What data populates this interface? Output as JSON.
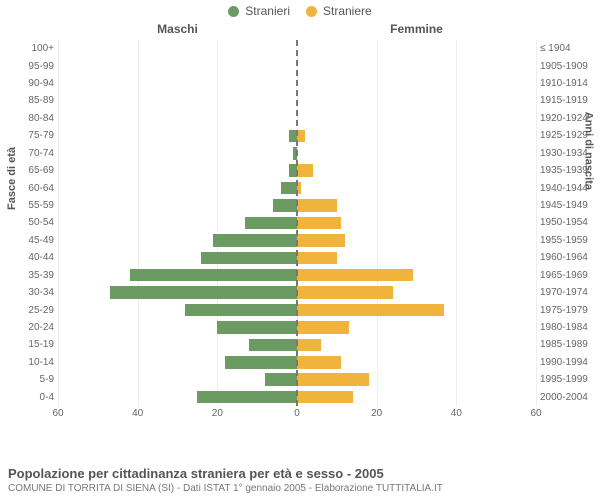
{
  "legend": {
    "male": {
      "label": "Stranieri",
      "color": "#6b9a62"
    },
    "female": {
      "label": "Straniere",
      "color": "#f0b43c"
    }
  },
  "column_headers": {
    "male": "Maschi",
    "female": "Femmine"
  },
  "axis_titles": {
    "left": "Fasce di età",
    "right": "Anni di nascita"
  },
  "chart": {
    "x_max": 60,
    "x_ticks": [
      60,
      40,
      20,
      0,
      20,
      40,
      60
    ],
    "grid_color": "#eeeeee",
    "center_line_color": "#777777",
    "background_color": "#ffffff",
    "rows": [
      {
        "age": "100+",
        "years": "≤ 1904",
        "m": 0,
        "f": 0
      },
      {
        "age": "95-99",
        "years": "1905-1909",
        "m": 0,
        "f": 0
      },
      {
        "age": "90-94",
        "years": "1910-1914",
        "m": 0,
        "f": 0
      },
      {
        "age": "85-89",
        "years": "1915-1919",
        "m": 0,
        "f": 0
      },
      {
        "age": "80-84",
        "years": "1920-1924",
        "m": 0,
        "f": 0
      },
      {
        "age": "75-79",
        "years": "1925-1929",
        "m": 2,
        "f": 2
      },
      {
        "age": "70-74",
        "years": "1930-1934",
        "m": 1,
        "f": 0
      },
      {
        "age": "65-69",
        "years": "1935-1939",
        "m": 2,
        "f": 4
      },
      {
        "age": "60-64",
        "years": "1940-1944",
        "m": 4,
        "f": 1
      },
      {
        "age": "55-59",
        "years": "1945-1949",
        "m": 6,
        "f": 10
      },
      {
        "age": "50-54",
        "years": "1950-1954",
        "m": 13,
        "f": 11
      },
      {
        "age": "45-49",
        "years": "1955-1959",
        "m": 21,
        "f": 12
      },
      {
        "age": "40-44",
        "years": "1960-1964",
        "m": 24,
        "f": 10
      },
      {
        "age": "35-39",
        "years": "1965-1969",
        "m": 42,
        "f": 29
      },
      {
        "age": "30-34",
        "years": "1970-1974",
        "m": 47,
        "f": 24
      },
      {
        "age": "25-29",
        "years": "1975-1979",
        "m": 28,
        "f": 37
      },
      {
        "age": "20-24",
        "years": "1980-1984",
        "m": 20,
        "f": 13
      },
      {
        "age": "15-19",
        "years": "1985-1989",
        "m": 12,
        "f": 6
      },
      {
        "age": "10-14",
        "years": "1990-1994",
        "m": 18,
        "f": 11
      },
      {
        "age": "5-9",
        "years": "1995-1999",
        "m": 8,
        "f": 18
      },
      {
        "age": "0-4",
        "years": "2000-2004",
        "m": 25,
        "f": 14
      }
    ]
  },
  "captions": {
    "title": "Popolazione per cittadinanza straniera per età e sesso - 2005",
    "subtitle": "COMUNE DI TORRITA DI SIENA (SI) - Dati ISTAT 1° gennaio 2005 - Elaborazione TUTTITALIA.IT"
  }
}
